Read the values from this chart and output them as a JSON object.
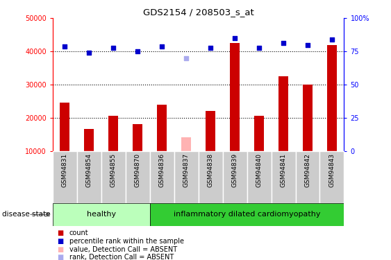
{
  "title": "GDS2154 / 208503_s_at",
  "samples": [
    "GSM94831",
    "GSM94854",
    "GSM94855",
    "GSM94870",
    "GSM94836",
    "GSM94837",
    "GSM94838",
    "GSM94839",
    "GSM94840",
    "GSM94841",
    "GSM94842",
    "GSM94843"
  ],
  "counts": [
    24500,
    16500,
    20500,
    18000,
    24000,
    null,
    22000,
    42500,
    20500,
    32500,
    30000,
    42000
  ],
  "counts_absent": [
    null,
    null,
    null,
    null,
    null,
    14000,
    null,
    null,
    null,
    null,
    null,
    null
  ],
  "percentile_ranks": [
    41500,
    39500,
    41000,
    40000,
    41500,
    null,
    41000,
    44000,
    41000,
    42500,
    42000,
    43500
  ],
  "percentile_ranks_absent": [
    null,
    null,
    null,
    null,
    null,
    38000,
    null,
    null,
    null,
    null,
    null,
    null
  ],
  "ylim_left": [
    10000,
    50000
  ],
  "ylim_right": [
    0,
    100
  ],
  "yticks_left": [
    10000,
    20000,
    30000,
    40000,
    50000
  ],
  "yticks_right": [
    0,
    25,
    50,
    75,
    100
  ],
  "ytick_labels_left": [
    "10000",
    "20000",
    "30000",
    "40000",
    "50000"
  ],
  "ytick_labels_right": [
    "0",
    "25",
    "50",
    "75",
    "100%"
  ],
  "n_healthy": 4,
  "n_disease": 8,
  "bar_color_normal": "#cc0000",
  "bar_color_absent": "#ffb3b3",
  "scatter_color_normal": "#0000cc",
  "scatter_color_absent": "#aaaaee",
  "healthy_bg": "#bbffbb",
  "disease_bg": "#33cc33",
  "sample_bg": "#cccccc",
  "dotted_yticks": [
    20000,
    30000,
    40000
  ],
  "legend_labels": [
    "count",
    "percentile rank within the sample",
    "value, Detection Call = ABSENT",
    "rank, Detection Call = ABSENT"
  ],
  "legend_colors": [
    "#cc0000",
    "#0000cc",
    "#ffb3b3",
    "#aaaaee"
  ]
}
